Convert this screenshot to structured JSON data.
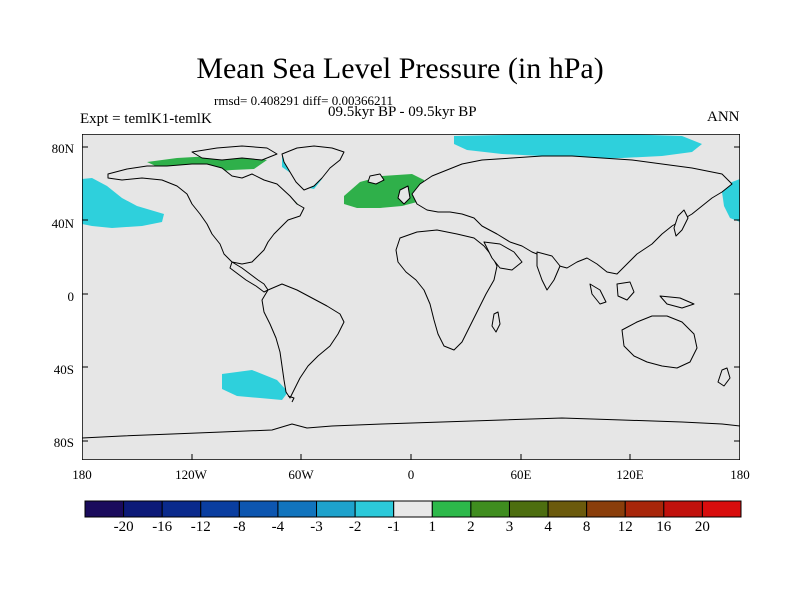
{
  "title": "Mean Sea Level Pressure (in hPa)",
  "stats": "rmsd= 0.408291 diff= 0.00366211",
  "experiment": "Expt = temlK1-temlK",
  "period": "09.5kyr BP - 09.5kyr BP",
  "season": "ANN",
  "lat_labels": [
    "80N",
    "40N",
    "0",
    "40S",
    "80S"
  ],
  "lon_labels": [
    "180",
    "120W",
    "60W",
    "0",
    "60E",
    "120E",
    "180"
  ],
  "colorbar": {
    "labels": [
      "-20",
      "-16",
      "-12",
      "-8",
      "-4",
      "-3",
      "-2",
      "-1",
      "1",
      "2",
      "3",
      "4",
      "8",
      "12",
      "16",
      "20"
    ],
    "colors": [
      "#1a0b5c",
      "#0c1a78",
      "#0a2a8c",
      "#0a3ea0",
      "#0d56b0",
      "#1174bd",
      "#1ea2cc",
      "#2bc9da",
      "#e8e8e8",
      "#2cb84a",
      "#3f8d1f",
      "#4d6e10",
      "#6b5a0c",
      "#8a3e0b",
      "#a8260a",
      "#c1110c",
      "#d80d0d"
    ]
  },
  "colors": {
    "ocean": "#e6e6e6",
    "land": "#e6e6e6",
    "negative_anomaly": "#2ed0dc",
    "positive_anomaly": "#2fb04a",
    "dark_positive": "#1e8f2e"
  }
}
